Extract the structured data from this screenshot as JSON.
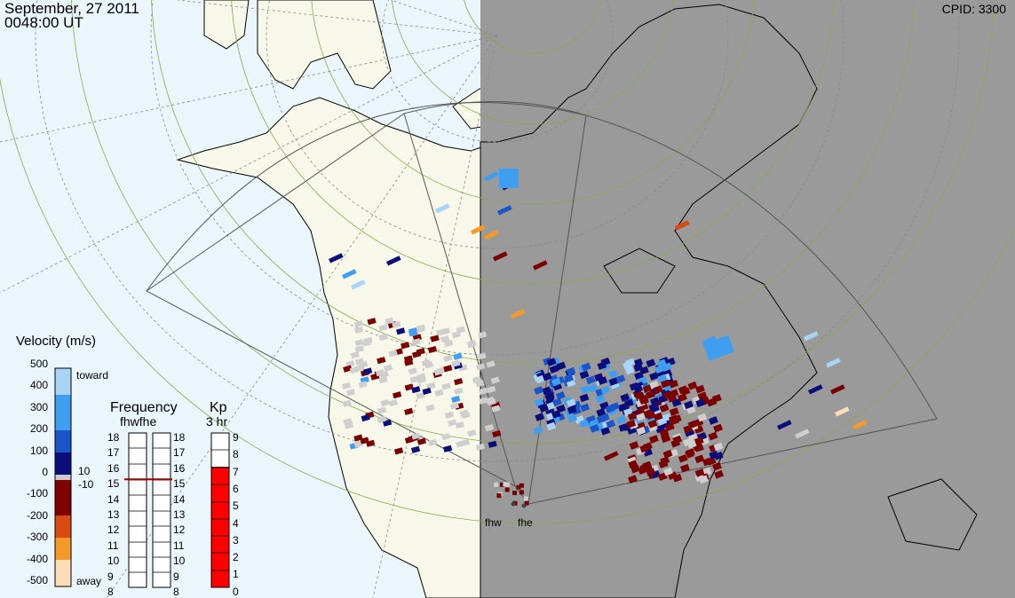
{
  "header": {
    "date": "September, 27 2011",
    "time": "0048:00 UT",
    "cpid": "CPID:  3300"
  },
  "colors": {
    "ocean": "#eaf6fc",
    "land": "#f7f8e9",
    "night": "#9a9a9a",
    "grid": "#8aa84e",
    "fov": "#555555"
  },
  "velocity_scale": {
    "title": "Velocity (m/s)",
    "ticks": [
      "500",
      "400",
      "300",
      "200",
      "100",
      "0",
      "-100",
      "-200",
      "-300",
      "-400",
      "-500"
    ],
    "toward_label": "toward",
    "away_label": "away",
    "gs_top": "10",
    "gs_bottom": "-10"
  },
  "frequency": {
    "title": "Frequency",
    "subtitle": "fhwfhe",
    "ticks": [
      "18",
      "17",
      "16",
      "15",
      "14",
      "13",
      "12",
      "11",
      "10",
      "9",
      "8"
    ],
    "fhw_mhz": 15,
    "fhe_mhz": 15
  },
  "kp": {
    "title": "Kp",
    "subtitle": "3 hr",
    "ticks": [
      "9",
      "8",
      "7",
      "6",
      "5",
      "4",
      "3",
      "2",
      "1",
      "0"
    ],
    "value": 7
  },
  "radars": [
    {
      "name": "fhw"
    },
    {
      "name": "fhe"
    }
  ]
}
